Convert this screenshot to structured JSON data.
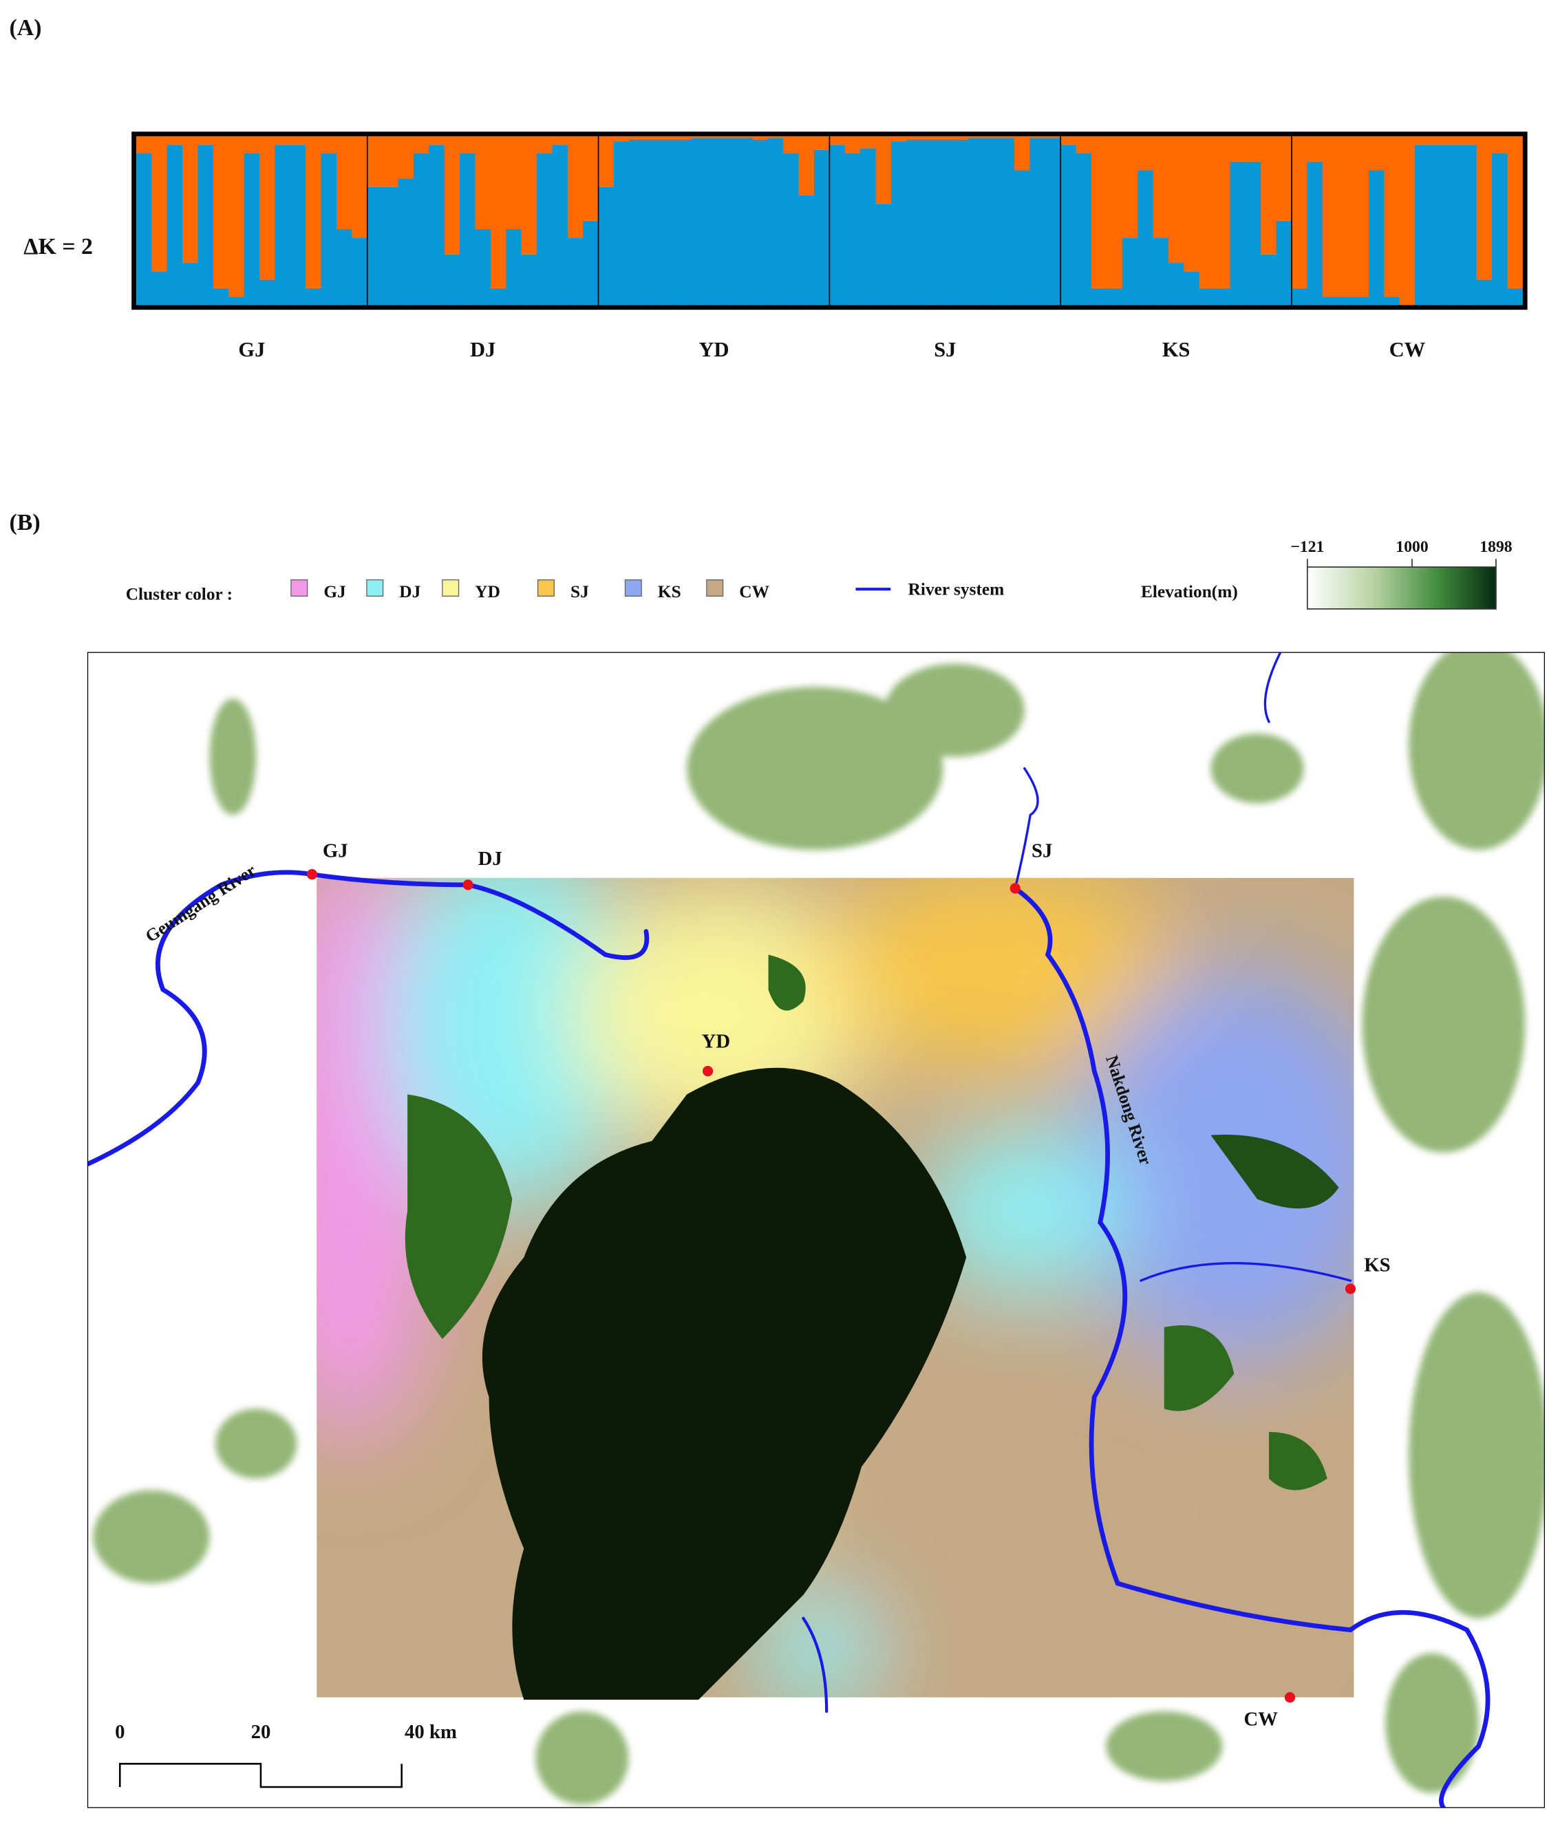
{
  "chart_data": {
    "type": "stacked-bar",
    "panel_label": "(A)",
    "ylabel": "ΔK = 2",
    "ylim": [
      0,
      1
    ],
    "groups": [
      {
        "name": "GJ",
        "series": [
          {
            "color": "#0897d9",
            "values": [
              0.9,
              0.2,
              0.95,
              0.25,
              0.95,
              0.1,
              0.05,
              0.9,
              0.15,
              0.95,
              0.95,
              0.1,
              0.9,
              0.45,
              0.4
            ]
          },
          {
            "color": "#ff6a00",
            "values": [
              0.1,
              0.8,
              0.05,
              0.75,
              0.05,
              0.9,
              0.95,
              0.1,
              0.85,
              0.05,
              0.05,
              0.9,
              0.1,
              0.55,
              0.6
            ]
          }
        ]
      },
      {
        "name": "DJ",
        "series": [
          {
            "color": "#0897d9",
            "values": [
              0.7,
              0.7,
              0.75,
              0.9,
              0.95,
              0.3,
              0.9,
              0.45,
              0.1,
              0.45,
              0.3,
              0.9,
              0.95,
              0.4,
              0.5
            ]
          },
          {
            "color": "#ff6a00",
            "values": [
              0.3,
              0.3,
              0.25,
              0.1,
              0.05,
              0.7,
              0.1,
              0.55,
              0.9,
              0.55,
              0.7,
              0.1,
              0.05,
              0.6,
              0.5
            ]
          }
        ]
      },
      {
        "name": "YD",
        "series": [
          {
            "color": "#0897d9",
            "values": [
              0.7,
              0.97,
              0.98,
              0.98,
              0.98,
              0.98,
              0.99,
              0.99,
              0.99,
              0.99,
              0.98,
              0.99,
              0.9,
              0.65,
              0.92
            ]
          },
          {
            "color": "#ff6a00",
            "values": [
              0.3,
              0.03,
              0.02,
              0.02,
              0.02,
              0.02,
              0.01,
              0.01,
              0.01,
              0.01,
              0.02,
              0.01,
              0.1,
              0.35,
              0.08
            ]
          }
        ]
      },
      {
        "name": "SJ",
        "series": [
          {
            "color": "#0897d9",
            "values": [
              0.95,
              0.9,
              0.93,
              0.6,
              0.97,
              0.98,
              0.98,
              0.98,
              0.98,
              0.99,
              0.99,
              0.99,
              0.8,
              0.99,
              0.99
            ]
          },
          {
            "color": "#ff6a00",
            "values": [
              0.05,
              0.1,
              0.07,
              0.4,
              0.03,
              0.02,
              0.02,
              0.02,
              0.02,
              0.01,
              0.01,
              0.01,
              0.2,
              0.01,
              0.01
            ]
          }
        ]
      },
      {
        "name": "KS",
        "series": [
          {
            "color": "#0897d9",
            "values": [
              0.95,
              0.9,
              0.1,
              0.1,
              0.4,
              0.8,
              0.4,
              0.25,
              0.2,
              0.1,
              0.1,
              0.85,
              0.85,
              0.3,
              0.5
            ]
          },
          {
            "color": "#ff6a00",
            "values": [
              0.05,
              0.1,
              0.9,
              0.9,
              0.6,
              0.2,
              0.6,
              0.75,
              0.8,
              0.9,
              0.9,
              0.15,
              0.15,
              0.7,
              0.5
            ]
          }
        ]
      },
      {
        "name": "CW",
        "series": [
          {
            "color": "#0897d9",
            "values": [
              0.1,
              0.85,
              0.05,
              0.05,
              0.05,
              0.8,
              0.05,
              0.0,
              0.95,
              0.95,
              0.95,
              0.95,
              0.15,
              0.9,
              0.1
            ]
          },
          {
            "color": "#ff6a00",
            "values": [
              0.9,
              0.15,
              0.95,
              0.95,
              0.95,
              0.2,
              0.95,
              1.0,
              0.05,
              0.05,
              0.05,
              0.05,
              0.85,
              0.1,
              0.9
            ]
          }
        ]
      }
    ]
  },
  "map": {
    "panel_label": "(B)",
    "legend": {
      "title": "Cluster color :",
      "clusters": [
        {
          "label": "GJ",
          "color": "#f29ae8"
        },
        {
          "label": "DJ",
          "color": "#8ef0f5"
        },
        {
          "label": "YD",
          "color": "#faf59a"
        },
        {
          "label": "SJ",
          "color": "#f7c64a"
        },
        {
          "label": "KS",
          "color": "#8fa6f2"
        },
        {
          "label": "CW",
          "color": "#c4a985"
        }
      ],
      "river": "River system"
    },
    "elevation": {
      "title": "Elevation(m)",
      "lim": [
        -121,
        1898
      ],
      "ticks": [
        {
          "value": -121,
          "label": "−121"
        },
        1000,
        1898
      ]
    },
    "sites": [
      "GJ",
      "DJ",
      "YD",
      "SJ",
      "KS",
      "CW"
    ],
    "rivers": [
      "Geumgang River",
      "Nakdong River"
    ],
    "scale_bar": {
      "ticks": [
        0,
        20,
        {
          "value": 40,
          "label": "40 km"
        }
      ]
    }
  }
}
